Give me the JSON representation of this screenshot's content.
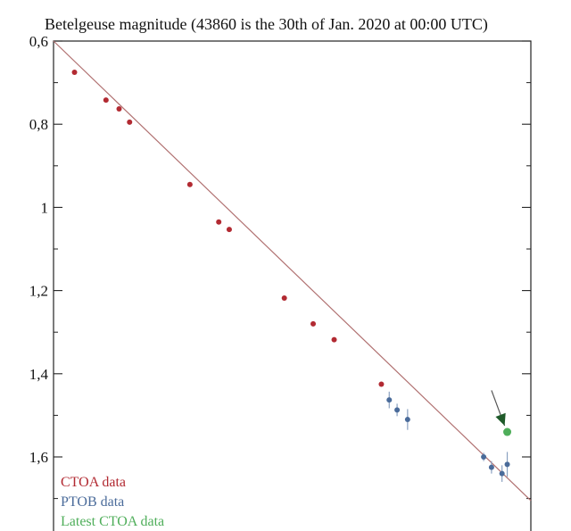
{
  "chart_data": {
    "type": "scatter",
    "title": "Betelgeuse magnitude (43860 is the 30th of Jan. 2020 at 00:00 UTC)",
    "xlabel": "",
    "ylabel": "",
    "ylim": [
      0.6,
      1.75
    ],
    "y_inverted": true,
    "yticks": [
      {
        "value": 0.6,
        "label": "0,6"
      },
      {
        "value": 0.8,
        "label": "0,8"
      },
      {
        "value": 1.0,
        "label": "1"
      },
      {
        "value": 1.2,
        "label": "1,2"
      },
      {
        "value": 1.4,
        "label": "1,4"
      },
      {
        "value": 1.6,
        "label": "1,6"
      }
    ],
    "trend_line": {
      "start": [
        43774,
        0.6
      ],
      "end": [
        43865,
        1.705
      ],
      "color": "#b07070"
    },
    "grid": false,
    "legend_position": "bottom-left",
    "xlim": [
      43774,
      43865
    ],
    "series": [
      {
        "name": "CTOA data",
        "color": "#b22a32",
        "points": [
          {
            "x": 43778,
            "y": 0.675
          },
          {
            "x": 43784,
            "y": 0.742
          },
          {
            "x": 43786.5,
            "y": 0.763
          },
          {
            "x": 43788.5,
            "y": 0.795
          },
          {
            "x": 43800,
            "y": 0.945
          },
          {
            "x": 43805.5,
            "y": 1.035
          },
          {
            "x": 43807.5,
            "y": 1.053
          },
          {
            "x": 43818,
            "y": 1.218
          },
          {
            "x": 43823.5,
            "y": 1.28
          },
          {
            "x": 43827.5,
            "y": 1.318
          },
          {
            "x": 43836.5,
            "y": 1.425
          }
        ]
      },
      {
        "name": "PTOB data",
        "color": "#4a6b9a",
        "points": [
          {
            "x": 43838,
            "y": 1.463,
            "err": 0.02
          },
          {
            "x": 43839.5,
            "y": 1.487,
            "err": 0.015
          },
          {
            "x": 43841.5,
            "y": 1.51,
            "err": 0.025
          },
          {
            "x": 43856,
            "y": 1.6,
            "err": 0.01
          },
          {
            "x": 43857.5,
            "y": 1.625,
            "err": 0.015
          },
          {
            "x": 43859.5,
            "y": 1.64,
            "err": 0.02
          },
          {
            "x": 43860.5,
            "y": 1.618,
            "err": 0.03
          }
        ]
      },
      {
        "name": "Latest CTOA data",
        "color": "#4fae5a",
        "points": [
          {
            "x": 43860.5,
            "y": 1.54
          }
        ]
      }
    ],
    "annotations": [
      {
        "type": "arrow",
        "from": [
          43857.5,
          1.44
        ],
        "to": [
          43860,
          1.525
        ],
        "color": "#1f5a2a"
      }
    ]
  }
}
